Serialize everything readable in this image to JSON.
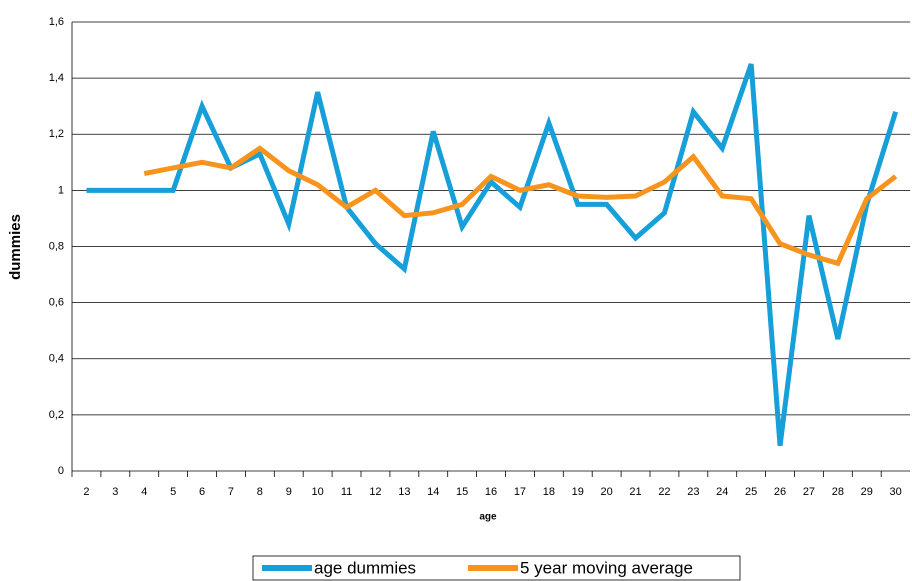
{
  "chart_data": {
    "type": "line",
    "x_label": "age",
    "y_label": "dummies",
    "categories": [
      "2",
      "3",
      "4",
      "5",
      "6",
      "7",
      "8",
      "9",
      "10",
      "11",
      "12",
      "13",
      "14",
      "15",
      "16",
      "17",
      "18",
      "19",
      "20",
      "21",
      "22",
      "23",
      "24",
      "25",
      "26",
      "27",
      "28",
      "29",
      "30"
    ],
    "series": [
      {
        "name": "age dummies",
        "color": "#169fd9",
        "values": [
          1.0,
          1.0,
          1.0,
          1.0,
          1.3,
          1.08,
          1.13,
          0.88,
          1.35,
          0.94,
          0.81,
          0.72,
          1.21,
          0.87,
          1.03,
          0.94,
          1.24,
          0.95,
          0.95,
          0.83,
          0.92,
          1.28,
          1.15,
          1.45,
          0.09,
          0.91,
          0.47,
          0.95,
          1.28
        ]
      },
      {
        "name": "5 year moving average",
        "color": "#f7941d",
        "values": [
          null,
          null,
          1.06,
          1.08,
          1.1,
          1.08,
          1.15,
          1.07,
          1.02,
          0.94,
          1.0,
          0.91,
          0.92,
          0.95,
          1.05,
          1.0,
          1.02,
          0.98,
          0.975,
          0.98,
          1.03,
          1.12,
          0.98,
          0.97,
          0.81,
          0.77,
          0.74,
          0.97,
          1.05
        ]
      }
    ],
    "ylim": [
      0,
      1.6
    ],
    "yticks": [
      0,
      {
        "value": 0.2,
        "label": "0,2"
      },
      {
        "value": 0.4,
        "label": "0,4"
      },
      {
        "value": 0.6,
        "label": "0,6"
      },
      {
        "value": 0.8,
        "label": "0,8"
      },
      1,
      {
        "value": 1.2,
        "label": "1,2"
      },
      {
        "value": 1.4,
        "label": "1,4"
      },
      {
        "value": 1.6,
        "label": "1,6"
      }
    ],
    "grid": true,
    "legend_position": "bottom"
  }
}
